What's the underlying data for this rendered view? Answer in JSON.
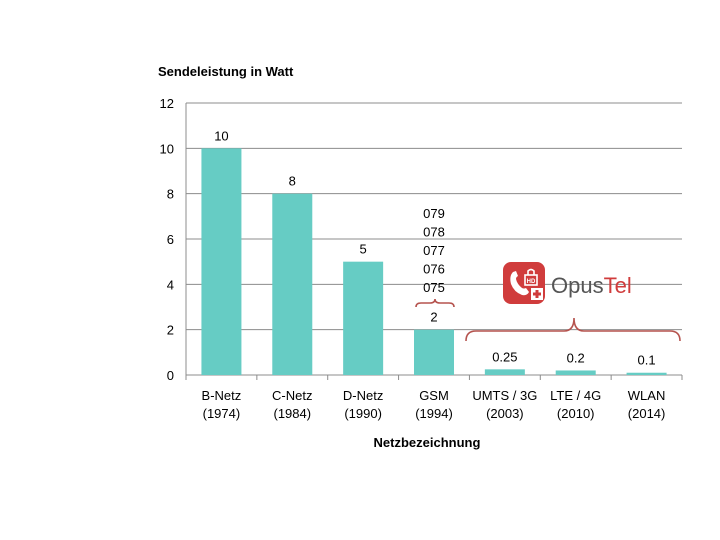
{
  "chart_data": {
    "type": "bar",
    "title": "Sendeleistung in Watt",
    "xlabel": "Netzbezeichnung",
    "ylabel": "",
    "ylim": [
      0,
      12
    ],
    "yticks": [
      0,
      2,
      4,
      6,
      8,
      10,
      12
    ],
    "grid": true,
    "bar_color": "#66CCC4",
    "categories": [
      [
        "B-Netz",
        "(1974)"
      ],
      [
        "C-Netz",
        "(1984)"
      ],
      [
        "D-Netz",
        "(1990)"
      ],
      [
        "GSM",
        "(1994)"
      ],
      [
        "UMTS / 3G",
        "(2003)"
      ],
      [
        "LTE / 4G",
        "(2010)"
      ],
      [
        "WLAN",
        "(2014)"
      ]
    ],
    "values": [
      10,
      8,
      5,
      2,
      0.25,
      0.2,
      0.1
    ],
    "value_labels": [
      "10",
      "8",
      "5",
      "2",
      "0.25",
      "0.2",
      "0.1"
    ]
  },
  "annotations": {
    "gsm_stack": [
      "079",
      "078",
      "077",
      "076",
      "075"
    ],
    "brace_color": "#B5534E"
  },
  "logo": {
    "icon_name": "phone-hd-lock-icon",
    "brand_colors": {
      "red": "#D03C3C",
      "grey": "#555555"
    },
    "name_part1": "Opus",
    "name_part2": "Tel"
  }
}
